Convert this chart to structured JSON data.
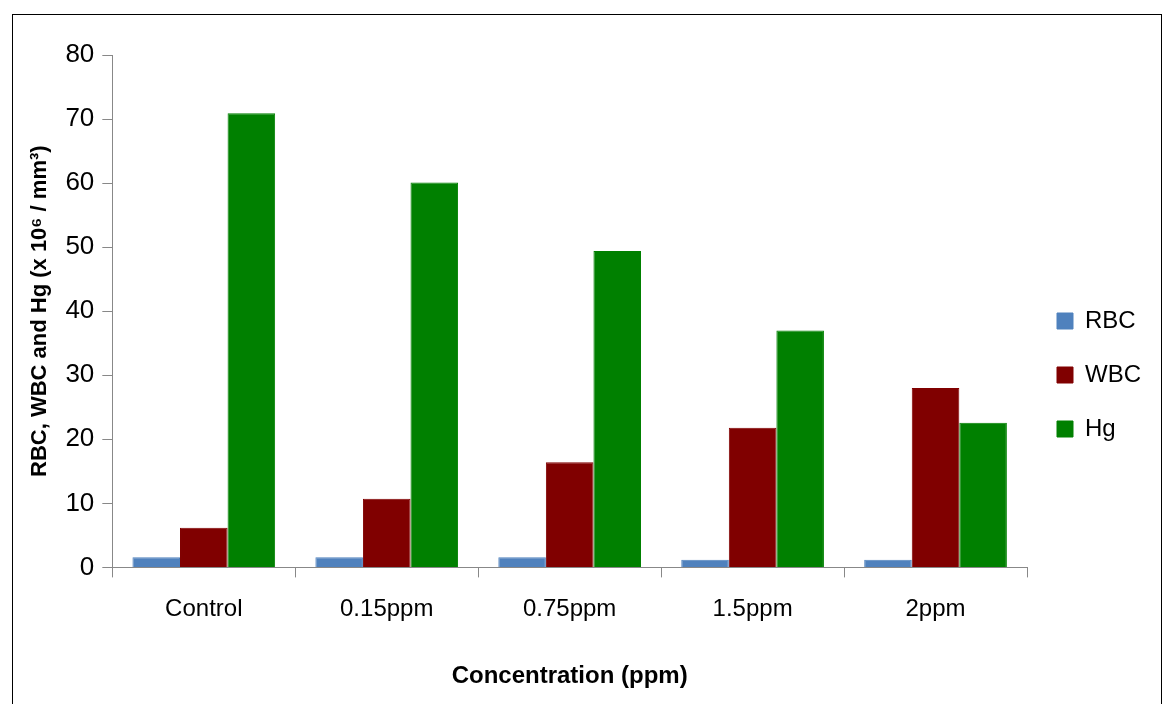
{
  "chart_data": {
    "type": "bar",
    "xlabel": "Concentration (ppm)",
    "ylabel": "RBC, WBC and Hg (x 10⁶ / mm³)",
    "categories": [
      "Control",
      "0.15ppm",
      "0.75ppm",
      "1.5ppm",
      "2ppm"
    ],
    "series": [
      {
        "name": "RBC",
        "color": "#4f81bd",
        "values": [
          1.6,
          1.6,
          1.6,
          1.2,
          1.2
        ]
      },
      {
        "name": "WBC",
        "color": "#800000",
        "values": [
          6.2,
          10.7,
          16.4,
          21.8,
          28.0
        ]
      },
      {
        "name": "Hg",
        "color": "#008000",
        "values": [
          70.9,
          60.1,
          49.4,
          37.0,
          22.6
        ]
      }
    ],
    "ylim": [
      0,
      80
    ],
    "yticks": [
      0,
      10,
      20,
      30,
      40,
      50,
      60,
      70,
      80
    ],
    "grid": false,
    "legend": "right"
  }
}
